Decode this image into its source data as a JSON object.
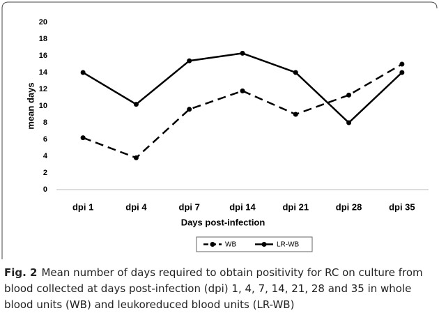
{
  "chart_data": {
    "type": "line",
    "y_axis_label": "mean days",
    "x_axis_label": "Days post-infection",
    "categories": [
      "dpi 1",
      "dpi 4",
      "dpi 7",
      "dpi 14",
      "dpi 21",
      "dpi 28",
      "dpi 35"
    ],
    "series": [
      {
        "name": "WB",
        "color": "#000000",
        "line_style": "dashed",
        "values": [
          6.2,
          3.8,
          9.6,
          11.8,
          9.0,
          11.3,
          15.0
        ]
      },
      {
        "name": "LR-WB",
        "color": "#000000",
        "line_style": "solid",
        "values": [
          14.0,
          10.2,
          15.4,
          16.3,
          14.0,
          8.0,
          14.0
        ]
      }
    ],
    "ylim": [
      0,
      20
    ],
    "yticks": [
      0,
      2,
      4,
      6,
      8,
      10,
      12,
      14,
      16,
      18,
      20
    ],
    "grid": false,
    "legend": "bottom",
    "caption_label": "Fig. 2",
    "caption": "Mean number of days required to obtain positivity for RC on culture from blood collected at days post-infection (dpi) 1, 4, 7, 14, 21, 28 and 35 in whole blood units (WB) and leukoreduced blood units (LR-WB)"
  }
}
